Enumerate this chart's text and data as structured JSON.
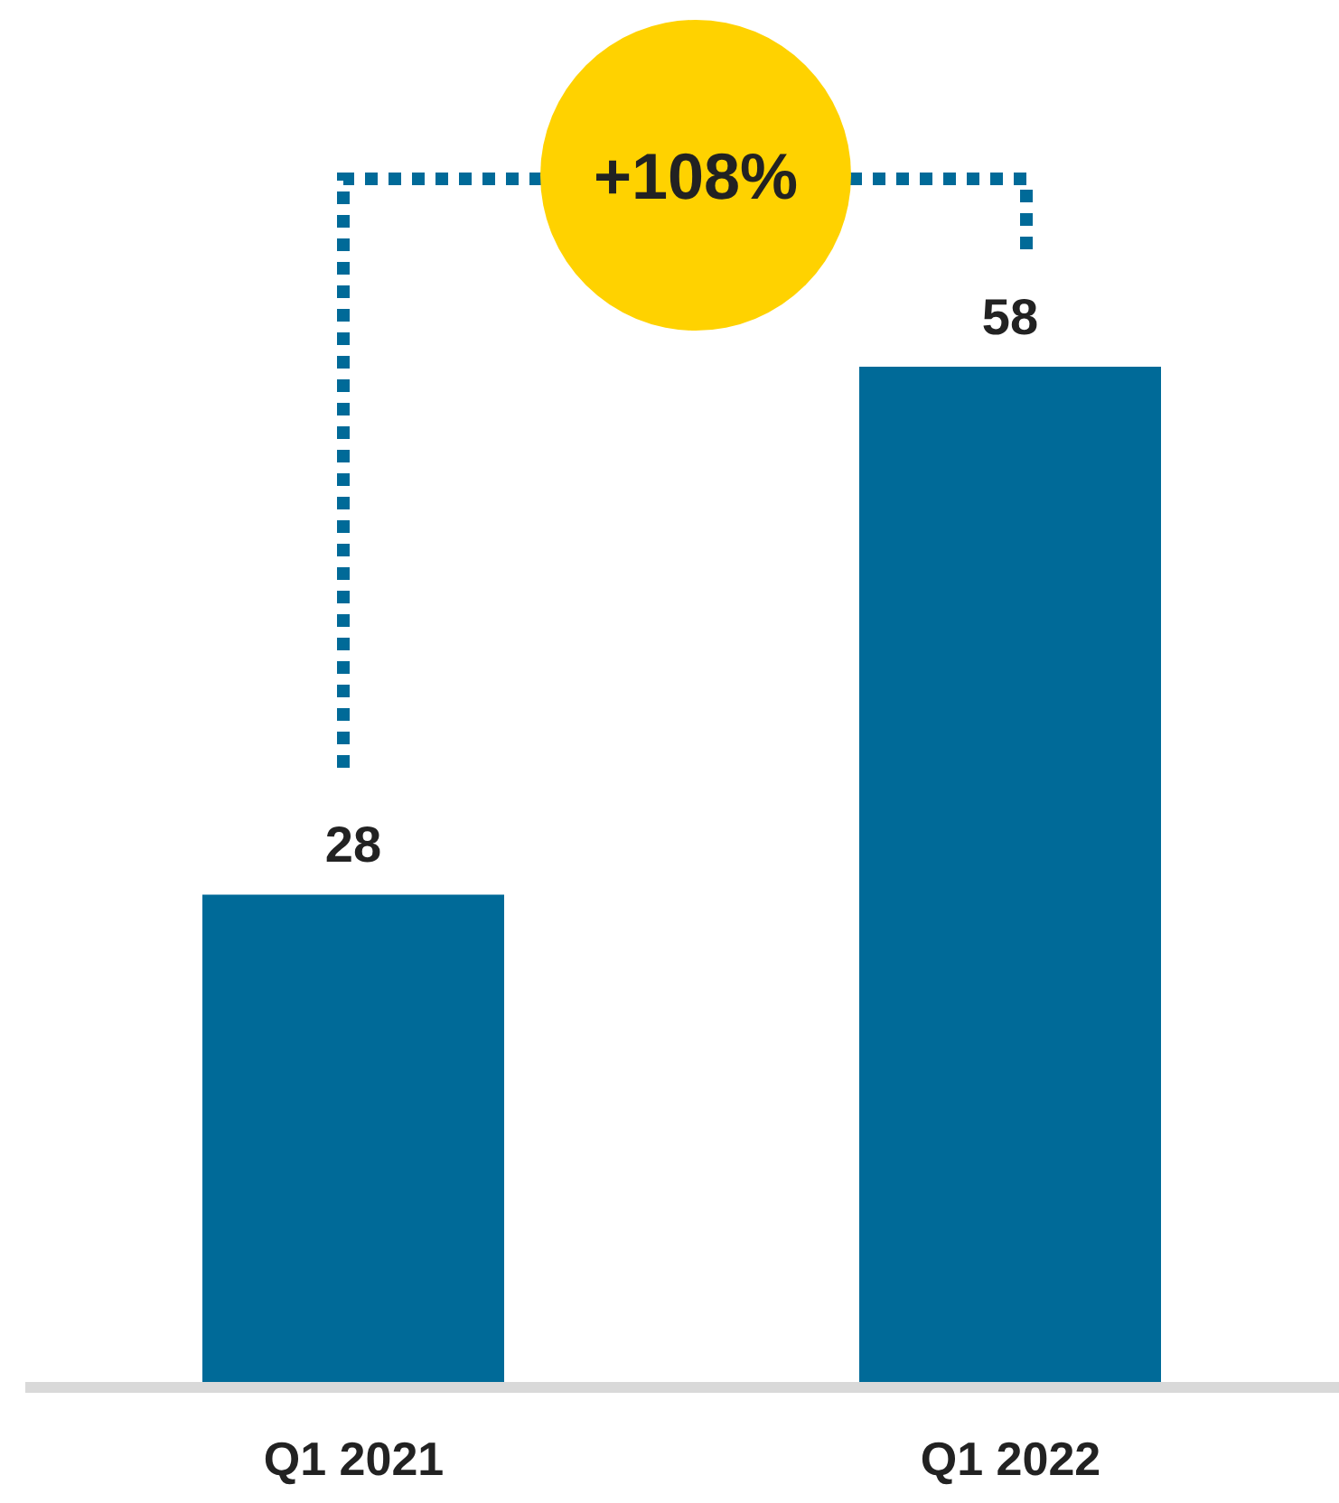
{
  "chart_data": {
    "type": "bar",
    "categories": [
      "Q1 2021",
      "Q1 2022"
    ],
    "values": [
      28,
      58
    ],
    "color": "#006a98",
    "data_labels": true,
    "annotations": [
      "+108%"
    ]
  }
}
